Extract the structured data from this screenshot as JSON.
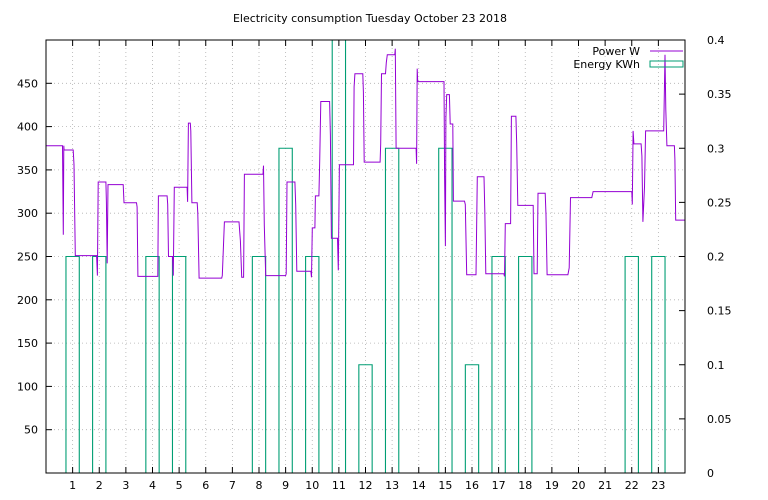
{
  "chart_data": {
    "type": "line",
    "title": "Electricity consumption Tuesday October 23 2018",
    "x_ticks": [
      "1",
      "2",
      "3",
      "4",
      "5",
      "6",
      "7",
      "8",
      "9",
      "10",
      "11",
      "12",
      "13",
      "14",
      "15",
      "16",
      "17",
      "18",
      "19",
      "20",
      "21",
      "22",
      "23"
    ],
    "xlim": [
      0,
      24
    ],
    "y_left": {
      "ticks": [
        "50",
        "100",
        "150",
        "200",
        "250",
        "300",
        "350",
        "400",
        "450"
      ],
      "range": [
        0,
        500
      ]
    },
    "y_right": {
      "ticks": [
        "0",
        "0.05",
        "0.1",
        "0.15",
        "0.2",
        "0.25",
        "0.3",
        "0.35",
        "0.4"
      ],
      "range": [
        0,
        0.4
      ]
    },
    "grid": true,
    "legend_position": "top-right",
    "series": [
      {
        "name": "Power W",
        "color": "#9400d3",
        "axis": "left",
        "style": "line",
        "points": [
          [
            0.0,
            378
          ],
          [
            0.62,
            378
          ],
          [
            0.65,
            275
          ],
          [
            0.67,
            378
          ],
          [
            0.68,
            373
          ],
          [
            1.0,
            373
          ],
          [
            1.02,
            373
          ],
          [
            1.05,
            356
          ],
          [
            1.1,
            251
          ],
          [
            1.9,
            251
          ],
          [
            1.93,
            228
          ],
          [
            1.96,
            336
          ],
          [
            2.25,
            336
          ],
          [
            2.27,
            313
          ],
          [
            2.3,
            242
          ],
          [
            2.33,
            333
          ],
          [
            2.9,
            333
          ],
          [
            2.93,
            312
          ],
          [
            3.4,
            312
          ],
          [
            3.42,
            307
          ],
          [
            3.45,
            227
          ],
          [
            4.2,
            227
          ],
          [
            4.22,
            320
          ],
          [
            4.55,
            320
          ],
          [
            4.57,
            310
          ],
          [
            4.6,
            250
          ],
          [
            4.75,
            250
          ],
          [
            4.78,
            228
          ],
          [
            4.82,
            330
          ],
          [
            5.3,
            330
          ],
          [
            5.32,
            313
          ],
          [
            5.35,
            404
          ],
          [
            5.42,
            404
          ],
          [
            5.44,
            395
          ],
          [
            5.48,
            312
          ],
          [
            5.68,
            312
          ],
          [
            5.7,
            300
          ],
          [
            5.75,
            225
          ],
          [
            6.6,
            225
          ],
          [
            6.62,
            228
          ],
          [
            6.7,
            290
          ],
          [
            7.25,
            290
          ],
          [
            7.3,
            268
          ],
          [
            7.35,
            226
          ],
          [
            7.42,
            226
          ],
          [
            7.45,
            345
          ],
          [
            8.15,
            345
          ],
          [
            8.17,
            355
          ],
          [
            8.2,
            286
          ],
          [
            8.25,
            228
          ],
          [
            9.0,
            228
          ],
          [
            9.02,
            230
          ],
          [
            9.05,
            336
          ],
          [
            9.35,
            336
          ],
          [
            9.38,
            310
          ],
          [
            9.42,
            233
          ],
          [
            9.95,
            233
          ],
          [
            9.97,
            226
          ],
          [
            10.0,
            283
          ],
          [
            10.1,
            283
          ],
          [
            10.12,
            320
          ],
          [
            10.25,
            320
          ],
          [
            10.28,
            360
          ],
          [
            10.32,
            429
          ],
          [
            10.65,
            429
          ],
          [
            10.68,
            390
          ],
          [
            10.72,
            271
          ],
          [
            10.95,
            271
          ],
          [
            10.98,
            234
          ],
          [
            11.02,
            356
          ],
          [
            11.55,
            356
          ],
          [
            11.57,
            446
          ],
          [
            11.6,
            461
          ],
          [
            11.9,
            461
          ],
          [
            11.92,
            440
          ],
          [
            11.95,
            359
          ],
          [
            12.55,
            359
          ],
          [
            12.57,
            380
          ],
          [
            12.6,
            461
          ],
          [
            12.75,
            461
          ],
          [
            12.78,
            474
          ],
          [
            12.82,
            483
          ],
          [
            13.1,
            483
          ],
          [
            13.12,
            490
          ],
          [
            13.15,
            375
          ],
          [
            13.9,
            375
          ],
          [
            13.92,
            357
          ],
          [
            13.94,
            467
          ],
          [
            13.96,
            452
          ],
          [
            14.95,
            452
          ],
          [
            14.97,
            341
          ],
          [
            15.0,
            262
          ],
          [
            15.02,
            410
          ],
          [
            15.05,
            437
          ],
          [
            15.15,
            437
          ],
          [
            15.18,
            403
          ],
          [
            15.28,
            403
          ],
          [
            15.3,
            314
          ],
          [
            15.72,
            314
          ],
          [
            15.75,
            310
          ],
          [
            15.8,
            229
          ],
          [
            16.15,
            229
          ],
          [
            16.2,
            342
          ],
          [
            16.45,
            342
          ],
          [
            16.48,
            303
          ],
          [
            16.52,
            230
          ],
          [
            17.2,
            230
          ],
          [
            17.22,
            227
          ],
          [
            17.25,
            288
          ],
          [
            17.45,
            288
          ],
          [
            17.48,
            412
          ],
          [
            17.65,
            412
          ],
          [
            17.68,
            380
          ],
          [
            17.72,
            309
          ],
          [
            18.3,
            309
          ],
          [
            18.33,
            230
          ],
          [
            18.45,
            230
          ],
          [
            18.48,
            323
          ],
          [
            18.75,
            323
          ],
          [
            18.78,
            298
          ],
          [
            18.82,
            229
          ],
          [
            19.6,
            229
          ],
          [
            19.65,
            237
          ],
          [
            19.7,
            318
          ],
          [
            20.5,
            318
          ],
          [
            20.55,
            325
          ],
          [
            22.0,
            325
          ],
          [
            22.02,
            310
          ],
          [
            22.05,
            395
          ],
          [
            22.08,
            380
          ],
          [
            22.35,
            380
          ],
          [
            22.38,
            366
          ],
          [
            22.42,
            290
          ],
          [
            22.48,
            330
          ],
          [
            22.52,
            395
          ],
          [
            23.2,
            395
          ],
          [
            23.25,
            483
          ],
          [
            23.28,
            420
          ],
          [
            23.32,
            378
          ],
          [
            23.6,
            378
          ],
          [
            23.62,
            362
          ],
          [
            23.65,
            292
          ],
          [
            24.0,
            292
          ]
        ]
      },
      {
        "name": "Energy KWh",
        "color": "#009e73",
        "axis": "right",
        "style": "steps",
        "bars": [
          [
            0.75,
            1.25,
            0.2
          ],
          [
            1.75,
            2.25,
            0.2
          ],
          [
            3.75,
            4.25,
            0.2
          ],
          [
            4.75,
            5.25,
            0.2
          ],
          [
            7.75,
            8.25,
            0.2
          ],
          [
            8.75,
            9.25,
            0.3
          ],
          [
            9.75,
            10.25,
            0.2
          ],
          [
            10.75,
            11.25,
            0.4
          ],
          [
            11.75,
            12.25,
            0.1
          ],
          [
            12.75,
            13.25,
            0.3
          ],
          [
            14.75,
            15.25,
            0.3
          ],
          [
            15.75,
            16.25,
            0.1
          ],
          [
            16.75,
            17.25,
            0.2
          ],
          [
            17.75,
            18.25,
            0.2
          ],
          [
            21.75,
            22.25,
            0.2
          ],
          [
            22.75,
            23.25,
            0.2
          ]
        ]
      }
    ]
  }
}
